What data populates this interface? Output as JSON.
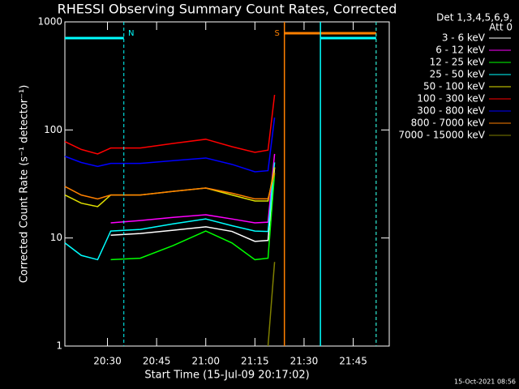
{
  "chart_data": {
    "type": "line",
    "title": "RHESSI Observing Summary Count Rates, Corrected",
    "x_label": "Start Time (15-Jul-09 20:17:02)",
    "y_label": "Corrected Count Rate (s⁻¹ detector⁻¹)",
    "legend_header": [
      "Det 1,3,4,5,6,9,",
      "Att 0"
    ],
    "footer": "15-Oct-2021 08:56",
    "log_y": true,
    "xlim": [
      "20:17",
      "21:56"
    ],
    "xticks": [
      "20:30",
      "20:45",
      "21:00",
      "21:15",
      "21:30",
      "21:45"
    ],
    "ylim": [
      1,
      1000
    ],
    "yticks": [
      1,
      10,
      100,
      1000
    ],
    "x": [
      "20:17",
      "20:22",
      "20:27",
      "20:31",
      "20:40",
      "20:50",
      "21:00",
      "21:08",
      "21:15",
      "21:19",
      "21:21"
    ],
    "series": [
      {
        "name": "3 - 6 keV",
        "color": "#ffffff",
        "values": [
          null,
          null,
          null,
          10.6,
          11,
          11.8,
          12.7,
          11.5,
          9.3,
          9.5,
          45
        ]
      },
      {
        "name": "6 - 12 keV",
        "color": "#ff00ff",
        "values": [
          null,
          null,
          null,
          13.8,
          14.5,
          15.5,
          16.4,
          15,
          13.8,
          14,
          60
        ]
      },
      {
        "name": "12 - 25 keV",
        "color": "#00ff00",
        "values": [
          null,
          null,
          null,
          6.3,
          6.5,
          8.5,
          11.6,
          9,
          6.3,
          6.5,
          40
        ]
      },
      {
        "name": "25 - 50 keV",
        "color": "#00ffff",
        "values": [
          9,
          6.9,
          6.3,
          11.6,
          12,
          13.5,
          15,
          13,
          11.6,
          11.5,
          50
        ]
      },
      {
        "name": "50 - 100 keV",
        "color": "#e0e000",
        "values": [
          25,
          21,
          19.5,
          25,
          25,
          27,
          29,
          25,
          22,
          22,
          45
        ]
      },
      {
        "name": "100 - 300 keV",
        "color": "#ff0000",
        "values": [
          78,
          66,
          60,
          68,
          68,
          75,
          82,
          70,
          62,
          65,
          211
        ]
      },
      {
        "name": "300 - 800 keV",
        "color": "#0000ff",
        "values": [
          57,
          50,
          46,
          49,
          49,
          52,
          55,
          48,
          41,
          42,
          130
        ]
      },
      {
        "name": "800 - 7000 keV",
        "color": "#ff8000",
        "values": [
          30,
          25,
          23,
          25,
          25,
          27,
          29,
          26,
          23,
          23,
          40
        ]
      },
      {
        "name": "7000 - 15000 keV",
        "color": "#808000",
        "values": [
          null,
          null,
          null,
          null,
          null,
          null,
          null,
          null,
          null,
          1,
          6
        ]
      }
    ],
    "intervals": [
      {
        "label": "N",
        "color": "#00ffff",
        "start": "20:17",
        "end": "20:35"
      },
      {
        "label": "S",
        "color": "#ff8000",
        "start": "21:24",
        "end": "21:52"
      },
      {
        "color": "#00ffff",
        "start": "21:35",
        "end": "21:52"
      }
    ]
  }
}
